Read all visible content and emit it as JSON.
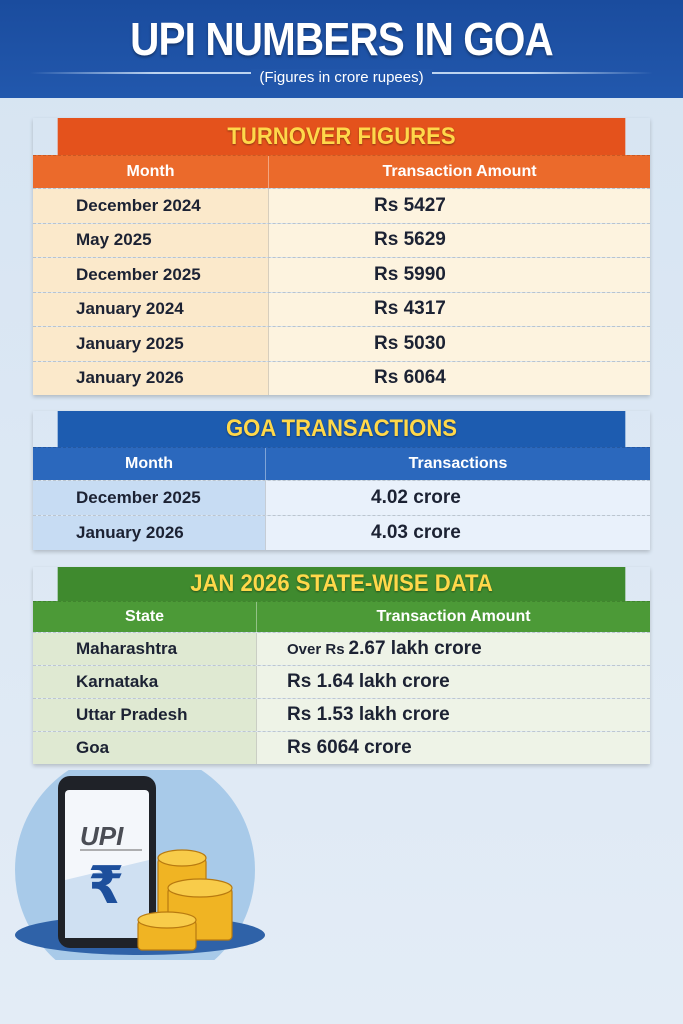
{
  "header": {
    "title": "UPI NUMBERS IN GOA",
    "subtitle": "(Figures in crore rupees)"
  },
  "turnover": {
    "title": "TURNOVER FIGURES",
    "columns": [
      "Month",
      "Transaction Amount"
    ],
    "rows": [
      [
        "December 2024",
        "Rs 5427"
      ],
      [
        "May 2025",
        "Rs 5629"
      ],
      [
        "December 2025",
        "Rs 5990"
      ],
      [
        "January 2024",
        "Rs 4317"
      ],
      [
        "January 2025",
        "Rs 5030"
      ],
      [
        "January 2026",
        "Rs 6064"
      ]
    ]
  },
  "goa": {
    "title": "GOA TRANSACTIONS",
    "columns": [
      "Month",
      "Transactions"
    ],
    "rows": [
      [
        "December 2025",
        "4.02 crore"
      ],
      [
        "January 2026",
        "4.03 crore"
      ]
    ]
  },
  "states": {
    "title": "JAN 2026 STATE-WISE DATA",
    "columns": [
      "State",
      "Transaction Amount"
    ],
    "rows": [
      [
        "Maharashtra",
        "Over Rs",
        "2.67 lakh crore"
      ],
      [
        "Karnataka",
        "",
        "Rs 1.64 lakh crore"
      ],
      [
        "Uttar Pradesh",
        "",
        "Rs 1.53 lakh crore"
      ],
      [
        "Goa",
        "",
        "Rs 6064 crore"
      ]
    ]
  },
  "illustration": {
    "logo_text": "UPI",
    "symbol": "₹"
  },
  "colors": {
    "header": "#1d4fa0",
    "orange": "#e4521c",
    "blue": "#1d5cb0",
    "green": "#3f8a2e",
    "title_yellow": "#ffd84a"
  }
}
